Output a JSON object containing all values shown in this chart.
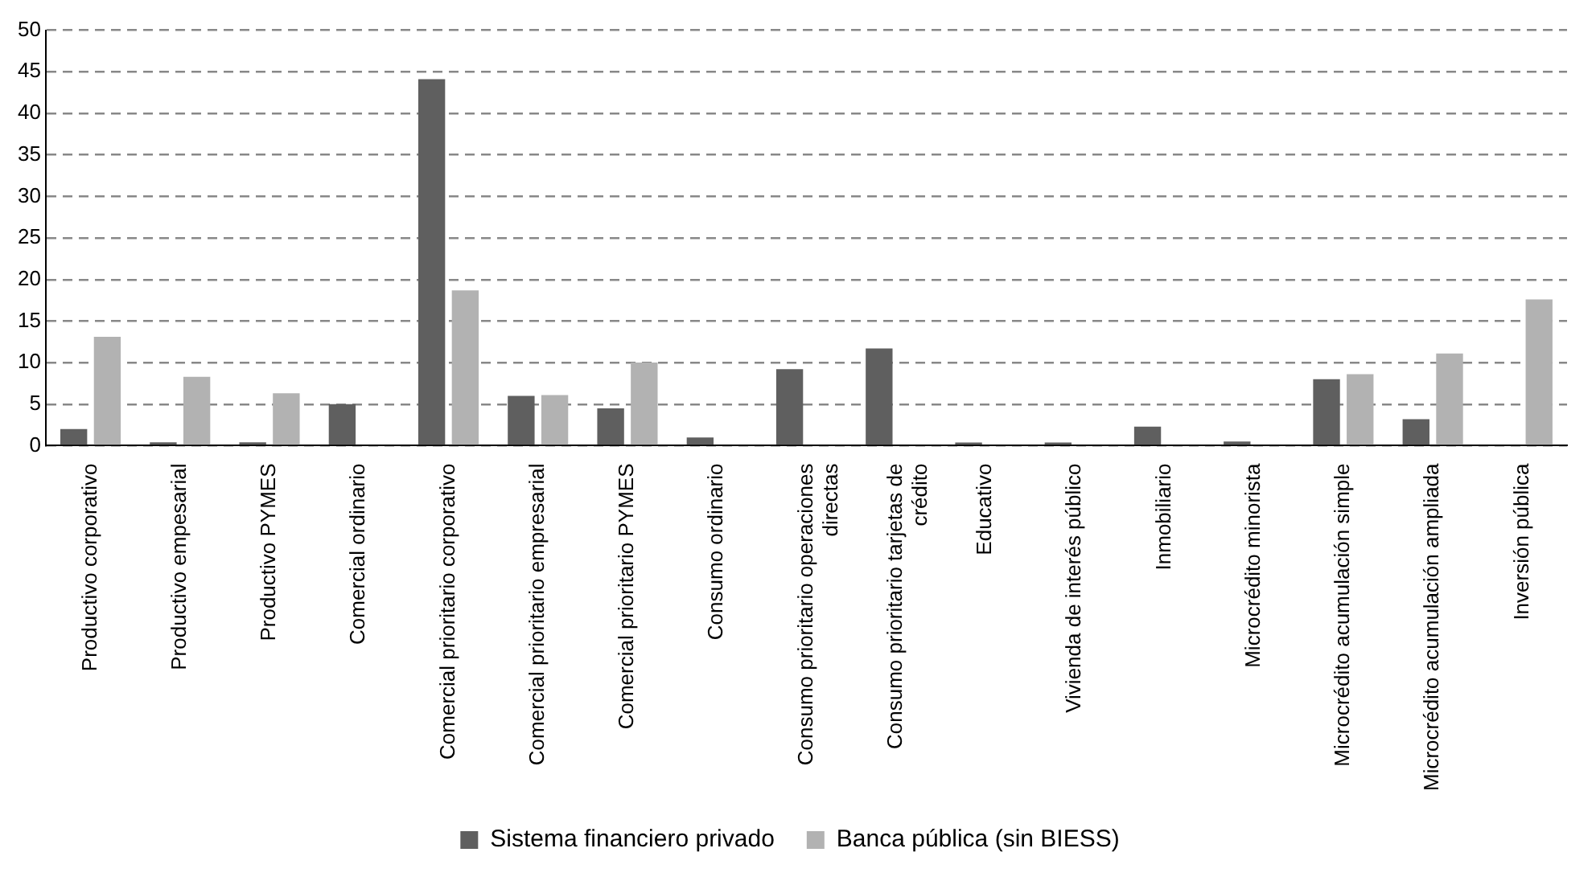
{
  "chart_data": {
    "type": "bar",
    "categories": [
      "Productivo corporativo",
      "Productivo empesarial",
      "Productivo PYMES",
      "Comercial ordinario",
      "Comercial prioritario corporativo",
      "Comercial prioritario empresarial",
      "Comercial prioritario PYMES",
      "Consumo ordinario",
      "Consumo prioritario operaciones directas",
      "Consumo prioritario tarjetas de crédito",
      "Educativo",
      "Vivienda de interés público",
      "Inmobiliario",
      "Microcrédito minorista",
      "Microcrédito acumulación simple",
      "Microcrédito acumulación ampliada",
      "Inversión pública"
    ],
    "series": [
      {
        "name": "Sistema financiero privado",
        "color": "#5f5f5f",
        "values": [
          2,
          0.4,
          0.4,
          5,
          44.1,
          6,
          4.5,
          1,
          9.2,
          11.7,
          0.3,
          0.2,
          2.3,
          0.5,
          8,
          3.2,
          null
        ]
      },
      {
        "name": "Banca pública (sin BIESS)",
        "color": "#b2b2b2",
        "values": [
          13.1,
          8.3,
          6.3,
          null,
          18.7,
          6.1,
          10,
          null,
          null,
          null,
          null,
          null,
          null,
          null,
          8.6,
          11.1,
          17.6
        ]
      }
    ],
    "ylim": [
      0,
      50
    ],
    "yticks": [
      0,
      5,
      10,
      15,
      20,
      25,
      30,
      35,
      40,
      45,
      50
    ],
    "grid": "y",
    "legend": "bottom"
  }
}
